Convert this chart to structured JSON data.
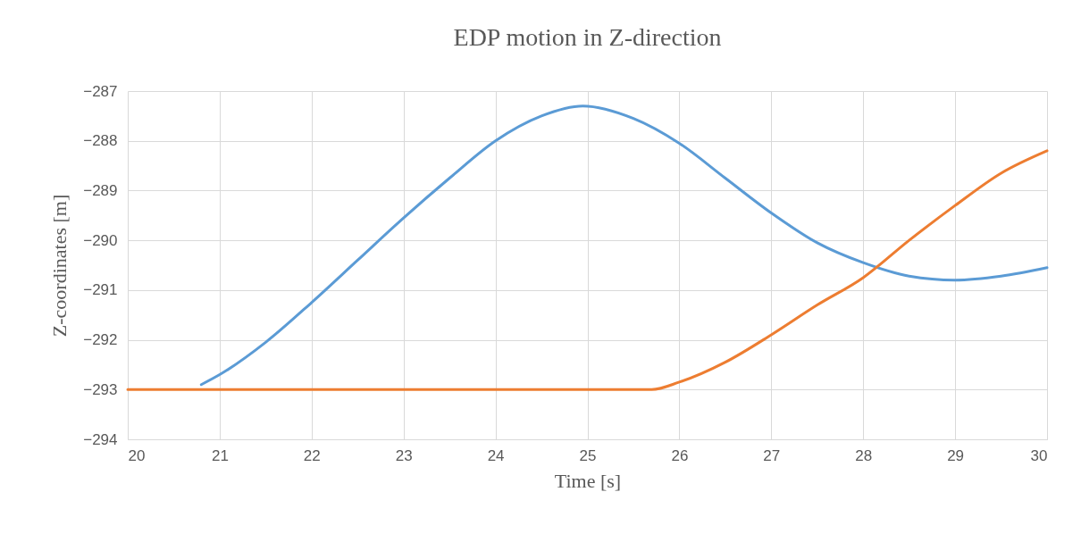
{
  "chart_data": {
    "type": "line",
    "title": "EDP motion in Z-direction",
    "xlabel": "Time [s]",
    "ylabel": "Z-coordinates [m]",
    "xlim": [
      20,
      30
    ],
    "xticks": [
      20,
      21,
      22,
      23,
      24,
      25,
      26,
      27,
      28,
      29,
      30
    ],
    "ylim": [
      -294,
      -287
    ],
    "yticks": [
      -294,
      -293,
      -292,
      -291,
      -290,
      -289,
      -288,
      -287
    ],
    "grid": true,
    "legend": false,
    "marker": "none",
    "line_style": "solid",
    "series": [
      {
        "color": "#5b9bd5",
        "x": [
          20.8,
          21,
          21.5,
          22,
          22.5,
          23,
          23.5,
          24,
          24.5,
          24.95,
          25.5,
          26,
          26.5,
          27,
          27.5,
          28,
          28.5,
          29,
          29.5,
          30
        ],
        "values": [
          -292.9,
          -292.7,
          -292.05,
          -291.25,
          -290.4,
          -289.55,
          -288.75,
          -288.0,
          -287.5,
          -287.3,
          -287.55,
          -288.05,
          -288.75,
          -289.45,
          -290.05,
          -290.45,
          -290.72,
          -290.8,
          -290.72,
          -290.55
        ]
      },
      {
        "color": "#ed7d31",
        "x": [
          20,
          25.7,
          26,
          26.5,
          27,
          27.5,
          28,
          28.5,
          29,
          29.5,
          30
        ],
        "values": [
          -293,
          -293,
          -292.85,
          -292.45,
          -291.9,
          -291.3,
          -290.75,
          -290.0,
          -289.3,
          -288.65,
          -288.2
        ]
      }
    ]
  }
}
